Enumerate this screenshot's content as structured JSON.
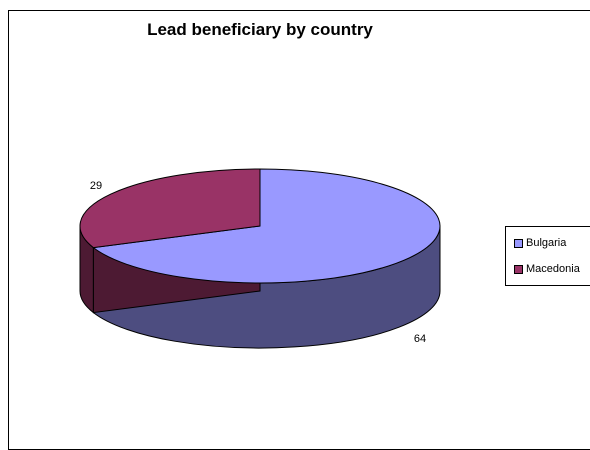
{
  "chart_data": {
    "type": "pie",
    "title": "Lead beneficiary by country",
    "categories": [
      "Bulgaria",
      "Macedonia"
    ],
    "values": [
      64,
      29
    ],
    "data_labels": [
      "64",
      "29"
    ],
    "colors": [
      "#9999ff",
      "#993366"
    ],
    "side_colors": [
      "#4d4d80",
      "#4d1a33"
    ],
    "three_d": true,
    "legend_position": "right"
  }
}
